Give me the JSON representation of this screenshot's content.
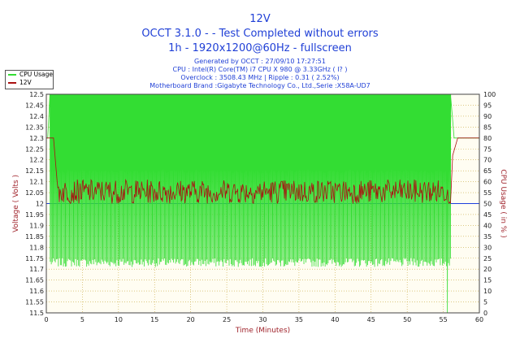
{
  "header": {
    "title": "12V",
    "subtitle": "OCCT 3.1.0 -  - Test Completed without errors",
    "resolution": "1h - 1920x1200@60Hz - fullscreen"
  },
  "info": {
    "generated": "Generated by OCCT : 27/09/10 17:27:51",
    "cpu": "CPU : Intel(R) Core(TM) i7 CPU X 980 @ 3.33GHz (  I? )",
    "overclock": "Overclock : 3508.43 MHz | Ripple : 0.31 ( 2.52%)",
    "motherboard": "Motherboard Brand :Gigabyte Technology Co., Ltd.,Serie :X58A-UD7"
  },
  "legend": {
    "cpu_usage": "CPU Usage",
    "voltage": "12V"
  },
  "colors": {
    "cpu": "#33dd33",
    "voltage": "#aa1111",
    "reference": "#1d3fdd",
    "grid": "#c8a840",
    "title": "#1f3fd6",
    "axis_title": "#a0242c"
  },
  "chart_data": {
    "type": "line",
    "xlabel": "Time (Minutes)",
    "ylabel": "Voltage ( Volts )",
    "y2label": "CPU Usage ( in % )",
    "xlim": [
      0,
      60
    ],
    "ylim": [
      11.5,
      12.5
    ],
    "y2lim": [
      0,
      100
    ],
    "x_ticks": [
      0,
      5,
      10,
      15,
      20,
      25,
      30,
      35,
      40,
      45,
      50,
      55,
      60
    ],
    "y_ticks": [
      11.5,
      11.55,
      11.6,
      11.65,
      11.7,
      11.75,
      11.8,
      11.85,
      11.9,
      11.95,
      12,
      12.05,
      12.1,
      12.15,
      12.2,
      12.25,
      12.3,
      12.35,
      12.4,
      12.45,
      12.5
    ],
    "y2_ticks": [
      0,
      5,
      10,
      15,
      20,
      25,
      30,
      35,
      40,
      45,
      50,
      55,
      60,
      65,
      70,
      75,
      80,
      85,
      90,
      95,
      100
    ],
    "reference_value": 12.0,
    "grid": true,
    "legend_position": "top-left",
    "series": [
      {
        "name": "CPU Usage",
        "axis": "right",
        "description": "idle at ~80% before 0.2 min and after 56.5 min; during the test oscillates rapidly between ~21% and 100%, with one drop to 0% near 55.5 min",
        "x": [
          0,
          0.2,
          0.5,
          56,
          56.5,
          57,
          60
        ],
        "y": [
          80,
          80,
          100,
          100,
          80,
          80,
          80
        ]
      },
      {
        "name": "12V",
        "axis": "left",
        "description": "voltage noise between 12.00 and 12.11 V during the test, ~12.30 V at idle start and end",
        "x": [
          0,
          1,
          1.5,
          2,
          56,
          56.3,
          57,
          60
        ],
        "y": [
          12.3,
          12.3,
          12.1,
          12.06,
          12.0,
          12.22,
          12.3,
          12.3
        ]
      }
    ]
  }
}
